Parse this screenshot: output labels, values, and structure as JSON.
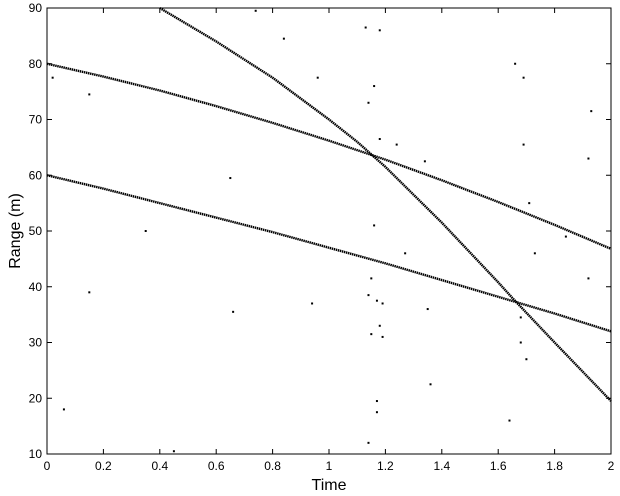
{
  "chart_data": {
    "type": "scatter",
    "xlabel": "Time",
    "ylabel": "Range (m)",
    "xlim": [
      0,
      2
    ],
    "ylim": [
      10,
      90
    ],
    "xticks": [
      0,
      0.2,
      0.4,
      0.6,
      0.8,
      1,
      1.2,
      1.4,
      1.6,
      1.8,
      2
    ],
    "yticks": [
      10,
      20,
      30,
      40,
      50,
      60,
      70,
      80,
      90
    ],
    "series": [
      {
        "style": "line",
        "color": "#000000",
        "x": [
          0,
          0.2,
          0.4,
          0.6,
          0.8,
          1,
          1.2,
          1.4,
          1.6,
          1.8,
          2
        ],
        "values": [
          80,
          77.7,
          75.2,
          72.4,
          69.4,
          66.2,
          62.8,
          59.1,
          55.2,
          51.1,
          46.8
        ]
      },
      {
        "style": "line",
        "color": "#000000",
        "x": [
          0,
          0.2,
          0.4,
          0.6,
          0.8,
          1,
          1.2,
          1.4,
          1.6,
          1.8,
          2
        ],
        "values": [
          60,
          57.6,
          55.0,
          52.4,
          49.8,
          47,
          44.2,
          41.2,
          38.2,
          35.2,
          32
        ]
      },
      {
        "style": "line",
        "color": "#000000",
        "x": [
          0.4,
          0.6,
          0.8,
          1.0,
          1.1,
          1.2,
          1.4,
          1.6,
          1.65,
          1.8,
          2.0
        ],
        "values": [
          90,
          84,
          77.5,
          70,
          66,
          61.5,
          51.5,
          40.8,
          38,
          30,
          19.5
        ]
      },
      {
        "style": "markers",
        "color": "#000000",
        "x": [
          0.02,
          0.15,
          0.06,
          0.15,
          0.35,
          0.45,
          0.65,
          0.66,
          0.74,
          0.84,
          0.96,
          0.94,
          1.13,
          1.18,
          1.16,
          1.14,
          1.18,
          1.16,
          1.14,
          1.17,
          1.19,
          1.15,
          1.19,
          1.18,
          1.15,
          1.17,
          1.17,
          1.14,
          1.24,
          1.27,
          1.34,
          1.35,
          1.36,
          1.64,
          1.66,
          1.69,
          1.69,
          1.71,
          1.68,
          1.68,
          1.7,
          1.73,
          1.84,
          1.92,
          1.93,
          1.92
        ],
        "values": [
          77.5,
          74.5,
          18,
          39,
          50,
          10.5,
          59.5,
          35.5,
          89.5,
          84.5,
          77.5,
          37,
          86.5,
          86,
          76,
          73,
          66.5,
          51,
          38.5,
          37.5,
          37,
          31.5,
          31,
          33,
          41.5,
          19.5,
          17.5,
          12,
          65.5,
          46,
          62.5,
          36,
          22.5,
          16,
          80,
          77.5,
          65.5,
          55,
          34.5,
          30,
          27,
          46,
          49,
          63,
          71.5,
          41.5
        ]
      }
    ]
  }
}
